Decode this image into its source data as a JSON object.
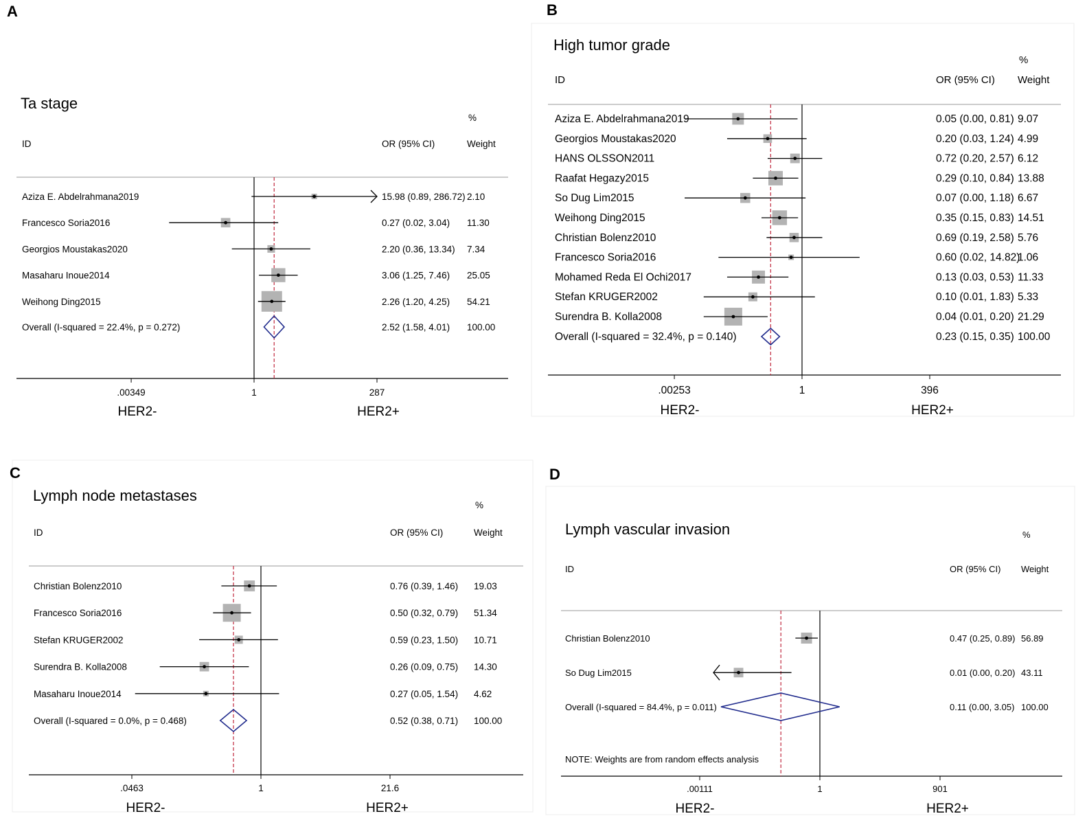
{
  "figure": {
    "width": 1567,
    "height": 1188
  },
  "chart_data": [
    {
      "panel": "A",
      "type": "forest",
      "title": "Ta stage",
      "columns": {
        "id": "ID",
        "or": "OR (95% CI)",
        "pct": "%",
        "weight": "Weight"
      },
      "axis_ticks": [
        ".00349",
        "1",
        "287"
      ],
      "xlim_log": [
        0.00349,
        287
      ],
      "axis_labels": {
        "left": "HER2-",
        "right": "HER2+"
      },
      "pooled_or": 2.52,
      "studies": [
        {
          "id": "Aziza E. Abdelrahmana2019",
          "or": 15.98,
          "lo": 0.89,
          "hi": 286.72,
          "weight": 2.1,
          "or_text": "15.98 (0.89, 286.72)",
          "weight_text": "2.10",
          "clipped_right": true
        },
        {
          "id": "Francesco Soria2016",
          "or": 0.27,
          "lo": 0.02,
          "hi": 3.04,
          "weight": 11.3,
          "or_text": "0.27 (0.02, 3.04)",
          "weight_text": "11.30"
        },
        {
          "id": "Georgios Moustakas2020",
          "or": 2.2,
          "lo": 0.36,
          "hi": 13.34,
          "weight": 7.34,
          "or_text": "2.20 (0.36, 13.34)",
          "weight_text": "7.34"
        },
        {
          "id": "Masaharu Inoue2014",
          "or": 3.06,
          "lo": 1.25,
          "hi": 7.46,
          "weight": 25.05,
          "or_text": "3.06 (1.25, 7.46)",
          "weight_text": "25.05"
        },
        {
          "id": "Weihong Ding2015",
          "or": 2.26,
          "lo": 1.2,
          "hi": 4.25,
          "weight": 54.21,
          "or_text": "2.26 (1.20, 4.25)",
          "weight_text": "54.21"
        }
      ],
      "overall": {
        "label": "Overall  (I-squared = 22.4%, p = 0.272)",
        "or": 2.52,
        "lo": 1.58,
        "hi": 4.01,
        "or_text": "2.52 (1.58, 4.01)",
        "weight_text": "100.00"
      }
    },
    {
      "panel": "B",
      "type": "forest",
      "title": "High tumor grade",
      "columns": {
        "id": "ID",
        "or": "OR (95% CI)",
        "pct": "%",
        "weight": "Weight"
      },
      "axis_ticks": [
        ".00253",
        "1",
        "396"
      ],
      "xlim_log": [
        0.00253,
        396
      ],
      "axis_labels": {
        "left": "HER2-",
        "right": "HER2+"
      },
      "pooled_or": 0.23,
      "studies": [
        {
          "id": "Aziza E. Abdelrahmana2019",
          "or": 0.05,
          "lo": 0.0,
          "hi": 0.81,
          "weight": 9.07,
          "or_text": "0.05 (0.00, 0.81)",
          "weight_text": "9.07"
        },
        {
          "id": "Georgios Moustakas2020",
          "or": 0.2,
          "lo": 0.03,
          "hi": 1.24,
          "weight": 4.99,
          "or_text": "0.20 (0.03, 1.24)",
          "weight_text": "4.99"
        },
        {
          "id": "HANS OLSSON2011",
          "or": 0.72,
          "lo": 0.2,
          "hi": 2.57,
          "weight": 6.12,
          "or_text": "0.72 (0.20, 2.57)",
          "weight_text": "6.12"
        },
        {
          "id": "Raafat Hegazy2015",
          "or": 0.29,
          "lo": 0.1,
          "hi": 0.84,
          "weight": 13.88,
          "or_text": "0.29 (0.10, 0.84)",
          "weight_text": "13.88"
        },
        {
          "id": "So Dug Lim2015",
          "or": 0.07,
          "lo": 0.0,
          "hi": 1.18,
          "weight": 6.67,
          "or_text": "0.07 (0.00, 1.18)",
          "weight_text": "6.67"
        },
        {
          "id": "Weihong Ding2015",
          "or": 0.35,
          "lo": 0.15,
          "hi": 0.83,
          "weight": 14.51,
          "or_text": "0.35 (0.15, 0.83)",
          "weight_text": "14.51"
        },
        {
          "id": "Christian Bolenz2010",
          "or": 0.69,
          "lo": 0.19,
          "hi": 2.58,
          "weight": 5.76,
          "or_text": "0.69 (0.19, 2.58)",
          "weight_text": "5.76"
        },
        {
          "id": "Francesco Soria2016",
          "or": 0.6,
          "lo": 0.02,
          "hi": 14.82,
          "weight": 1.06,
          "or_text": "0.60 (0.02, 14.82)",
          "weight_text": "1.06"
        },
        {
          "id": "Mohamed Reda El Ochi2017",
          "or": 0.13,
          "lo": 0.03,
          "hi": 0.53,
          "weight": 11.33,
          "or_text": "0.13 (0.03, 0.53)",
          "weight_text": "11.33"
        },
        {
          "id": "Stefan KRUGER2002",
          "or": 0.1,
          "lo": 0.01,
          "hi": 1.83,
          "weight": 5.33,
          "or_text": "0.10 (0.01, 1.83)",
          "weight_text": "5.33"
        },
        {
          "id": "Surendra B. Kolla2008",
          "or": 0.04,
          "lo": 0.01,
          "hi": 0.2,
          "weight": 21.29,
          "or_text": "0.04 (0.01, 0.20)",
          "weight_text": "21.29"
        }
      ],
      "overall": {
        "label": "Overall  (I-squared = 32.4%, p = 0.140)",
        "or": 0.23,
        "lo": 0.15,
        "hi": 0.35,
        "or_text": "0.23 (0.15, 0.35)",
        "weight_text": "100.00"
      }
    },
    {
      "panel": "C",
      "type": "forest",
      "title": "Lymph node metastases",
      "columns": {
        "id": "ID",
        "or": "OR (95% CI)",
        "pct": "%",
        "weight": "Weight"
      },
      "axis_ticks": [
        ".0463",
        "1",
        "21.6"
      ],
      "xlim_log": [
        0.0463,
        21.6
      ],
      "axis_labels": {
        "left": "HER2-",
        "right": "HER2+"
      },
      "pooled_or": 0.52,
      "studies": [
        {
          "id": "Christian Bolenz2010",
          "or": 0.76,
          "lo": 0.39,
          "hi": 1.46,
          "weight": 19.03,
          "or_text": "0.76 (0.39, 1.46)",
          "weight_text": "19.03"
        },
        {
          "id": "Francesco Soria2016",
          "or": 0.5,
          "lo": 0.32,
          "hi": 0.79,
          "weight": 51.34,
          "or_text": "0.50 (0.32, 0.79)",
          "weight_text": "51.34"
        },
        {
          "id": "Stefan KRUGER2002",
          "or": 0.59,
          "lo": 0.23,
          "hi": 1.5,
          "weight": 10.71,
          "or_text": "0.59 (0.23, 1.50)",
          "weight_text": "10.71"
        },
        {
          "id": "Surendra B. Kolla2008",
          "or": 0.26,
          "lo": 0.09,
          "hi": 0.75,
          "weight": 14.3,
          "or_text": "0.26 (0.09, 0.75)",
          "weight_text": "14.30"
        },
        {
          "id": "Masaharu Inoue2014",
          "or": 0.27,
          "lo": 0.05,
          "hi": 1.54,
          "weight": 4.62,
          "or_text": "0.27 (0.05, 1.54)",
          "weight_text": "4.62"
        }
      ],
      "overall": {
        "label": "Overall  (I-squared = 0.0%, p = 0.468)",
        "or": 0.52,
        "lo": 0.38,
        "hi": 0.71,
        "or_text": "0.52 (0.38, 0.71)",
        "weight_text": "100.00"
      }
    },
    {
      "panel": "D",
      "type": "forest",
      "title": "Lymph vascular invasion",
      "columns": {
        "id": "ID",
        "or": "OR (95% CI)",
        "pct": "%",
        "weight": "Weight"
      },
      "axis_ticks": [
        ".00111",
        "1",
        "901"
      ],
      "xlim_log": [
        0.00111,
        901
      ],
      "axis_labels": {
        "left": "HER2-",
        "right": "HER2+"
      },
      "pooled_or": 0.11,
      "note": "NOTE: Weights are from random effects analysis",
      "studies": [
        {
          "id": "Christian Bolenz2010",
          "or": 0.47,
          "lo": 0.25,
          "hi": 0.89,
          "weight": 56.89,
          "or_text": "0.47 (0.25, 0.89)",
          "weight_text": "56.89"
        },
        {
          "id": "So Dug Lim2015",
          "or": 0.01,
          "lo": 0.0,
          "hi": 0.2,
          "weight": 43.11,
          "or_text": "0.01 (0.00, 0.20)",
          "weight_text": "43.11",
          "clipped_left": true
        }
      ],
      "overall": {
        "label": "Overall  (I-squared = 84.4%, p = 0.011)",
        "or": 0.11,
        "lo": 0.0,
        "hi": 3.05,
        "or_text": "0.11 (0.00, 3.05)",
        "weight_text": "100.00"
      }
    }
  ]
}
